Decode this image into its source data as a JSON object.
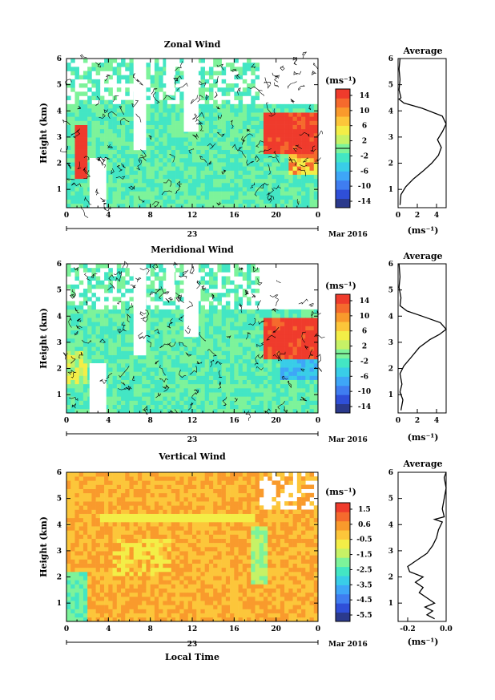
{
  "chart_data": [
    {
      "type": "heatmap",
      "title": "Zonal Wind",
      "ylabel": "Height (km)",
      "ylim": [
        0.3,
        6
      ],
      "yticks": [
        "1",
        "2",
        "3",
        "4",
        "5",
        "6"
      ],
      "xticks": [
        "0",
        "4",
        "8",
        "12",
        "16",
        "20",
        "0"
      ],
      "date_label": "23",
      "month_label": "Mar 2016",
      "colorbar_unit": "(ms⁻¹)",
      "colorbar_ticks": [
        "14",
        "10",
        "6",
        "2",
        "-2",
        "-6",
        "-10",
        "-14"
      ],
      "colorbar_range": [
        -16,
        16
      ],
      "has_contours": true,
      "description_regions": [
        "green background",
        "strong positive core 19-24 LT at 2.5-4 km",
        "positive 1-2 LT at 1.5-3 km"
      ],
      "profile": {
        "title": "Average",
        "xlabel": "(ms⁻¹)",
        "xticks": [
          "0",
          "2",
          "4"
        ],
        "xlim": [
          0,
          5
        ],
        "ylim": [
          0.3,
          6
        ],
        "yticks": [
          "1",
          "2",
          "3",
          "4",
          "5",
          "6"
        ],
        "points": [
          [
            0.2,
            0.4
          ],
          [
            0.3,
            0.8
          ],
          [
            0.8,
            1.1
          ],
          [
            1.6,
            1.4
          ],
          [
            2.6,
            1.7
          ],
          [
            3.5,
            2.0
          ],
          [
            4.2,
            2.3
          ],
          [
            4.5,
            2.6
          ],
          [
            4.1,
            2.9
          ],
          [
            4.6,
            3.2
          ],
          [
            5.0,
            3.5
          ],
          [
            4.6,
            3.8
          ],
          [
            2.5,
            4.1
          ],
          [
            0.6,
            4.3
          ],
          [
            0.1,
            4.45
          ],
          [
            0.3,
            4.5
          ],
          [
            0.1,
            4.8
          ],
          [
            0.2,
            5.2
          ],
          [
            0.1,
            5.6
          ],
          [
            0.2,
            6.0
          ]
        ]
      }
    },
    {
      "type": "heatmap",
      "title": "Meridional Wind",
      "ylabel": "Height (km)",
      "ylim": [
        0.3,
        6
      ],
      "yticks": [
        "1",
        "2",
        "3",
        "4",
        "5",
        "6"
      ],
      "xticks": [
        "0",
        "4",
        "8",
        "12",
        "16",
        "20",
        "0"
      ],
      "date_label": "23",
      "month_label": "Mar 2016",
      "colorbar_unit": "(ms⁻¹)",
      "colorbar_ticks": [
        "14",
        "10",
        "6",
        "2",
        "-2",
        "-6",
        "-10",
        "-14"
      ],
      "colorbar_range": [
        -16,
        16
      ],
      "has_contours": true,
      "profile": {
        "title": "Average",
        "xlabel": "(ms⁻¹)",
        "xticks": [
          "0",
          "2",
          "4"
        ],
        "xlim": [
          0,
          5
        ],
        "ylim": [
          0.3,
          6
        ],
        "yticks": [
          "1",
          "2",
          "3",
          "4",
          "5",
          "6"
        ],
        "points": [
          [
            0.3,
            0.4
          ],
          [
            0.5,
            0.8
          ],
          [
            0.2,
            1.1
          ],
          [
            0.4,
            1.4
          ],
          [
            0.2,
            1.8
          ],
          [
            0.6,
            2.1
          ],
          [
            1.3,
            2.4
          ],
          [
            2.2,
            2.8
          ],
          [
            3.3,
            3.1
          ],
          [
            4.3,
            3.3
          ],
          [
            5.0,
            3.5
          ],
          [
            4.4,
            3.75
          ],
          [
            2.5,
            4.0
          ],
          [
            0.9,
            4.2
          ],
          [
            0.2,
            4.4
          ],
          [
            0.3,
            4.7
          ],
          [
            0.1,
            5.1
          ],
          [
            0.2,
            5.5
          ],
          [
            0.1,
            6.0
          ]
        ]
      }
    },
    {
      "type": "heatmap",
      "title": "Vertical Wind",
      "ylabel": "Height (km)",
      "xlabel": "Local Time",
      "ylim": [
        0.3,
        6
      ],
      "yticks": [
        "1",
        "2",
        "3",
        "4",
        "5",
        "6"
      ],
      "xticks": [
        "0",
        "4",
        "8",
        "12",
        "16",
        "20",
        "0"
      ],
      "date_label": "23",
      "month_label": "Mar 2016",
      "colorbar_unit": "(ms⁻¹)",
      "colorbar_ticks": [
        "1.5",
        "0.6",
        "-0.5",
        "-1.5",
        "-2.5",
        "-3.5",
        "-4.5",
        "-5.5"
      ],
      "colorbar_range": [
        -6,
        2
      ],
      "has_contours": false,
      "profile": {
        "title": "Average",
        "xlabel": "(ms⁻¹)",
        "xticks": [
          "-0.2",
          "0.0"
        ],
        "xlim": [
          -0.25,
          0.0
        ],
        "ylim": [
          0.3,
          6
        ],
        "yticks": [
          "1",
          "2",
          "3",
          "4",
          "5",
          "6"
        ],
        "points": [
          [
            -0.06,
            0.4
          ],
          [
            -0.1,
            0.55
          ],
          [
            -0.07,
            0.7
          ],
          [
            -0.11,
            0.85
          ],
          [
            -0.06,
            1.0
          ],
          [
            -0.1,
            1.2
          ],
          [
            -0.14,
            1.4
          ],
          [
            -0.12,
            1.6
          ],
          [
            -0.16,
            1.8
          ],
          [
            -0.12,
            2.0
          ],
          [
            -0.19,
            2.2
          ],
          [
            -0.2,
            2.4
          ],
          [
            -0.16,
            2.6
          ],
          [
            -0.1,
            2.9
          ],
          [
            -0.07,
            3.2
          ],
          [
            -0.05,
            3.5
          ],
          [
            -0.04,
            3.8
          ],
          [
            -0.02,
            4.1
          ],
          [
            -0.06,
            4.2
          ],
          [
            -0.01,
            4.3
          ],
          [
            -0.02,
            4.6
          ],
          [
            -0.01,
            5.0
          ],
          [
            0.0,
            5.4
          ],
          [
            -0.01,
            5.8
          ],
          [
            0.0,
            6.0
          ]
        ]
      }
    }
  ]
}
